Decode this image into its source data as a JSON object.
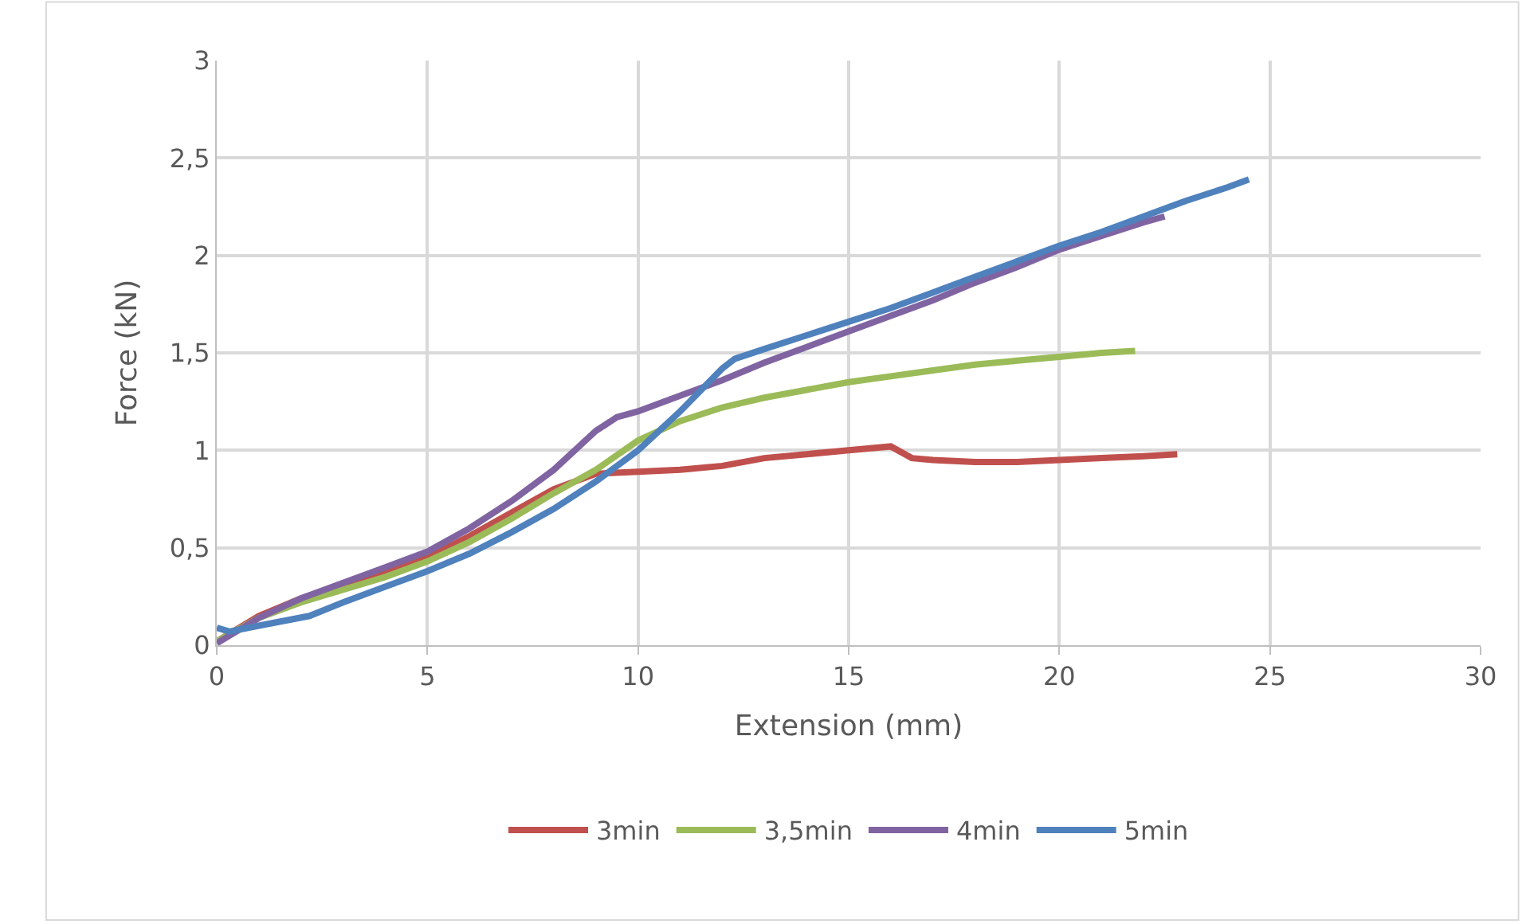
{
  "chart_data": {
    "type": "line",
    "xlabel": "Extension (mm)",
    "ylabel": "Force (kN)",
    "xlim": [
      0,
      30
    ],
    "xticks": [
      0,
      5,
      10,
      15,
      20,
      25,
      30
    ],
    "ylim": [
      0,
      3
    ],
    "yticks": [
      0,
      {
        "value": 0.5,
        "label": "0,5"
      },
      1,
      {
        "value": 1.5,
        "label": "1,5"
      },
      2,
      {
        "value": 2.5,
        "label": "2,5"
      },
      3
    ],
    "grid": true,
    "legend": "bottom",
    "marker": "none",
    "line_style": "solid",
    "series": [
      {
        "name": "3min",
        "color": "#c0504d",
        "x": [
          0,
          1,
          2,
          4,
          5,
          6,
          7,
          8,
          9,
          10,
          11,
          12,
          13,
          14,
          15,
          16,
          16.5,
          17,
          18,
          19,
          20,
          21,
          22,
          22.8
        ],
        "values": [
          0.02,
          0.15,
          0.24,
          0.37,
          0.45,
          0.56,
          0.68,
          0.8,
          0.88,
          0.89,
          0.9,
          0.92,
          0.96,
          0.98,
          1.0,
          1.02,
          0.96,
          0.95,
          0.94,
          0.94,
          0.95,
          0.96,
          0.97,
          0.98
        ]
      },
      {
        "name": "3,5min",
        "color": "#9bbb59",
        "x": [
          0,
          1,
          2,
          4,
          5,
          6,
          7,
          8,
          9,
          10,
          11,
          12,
          13,
          14,
          15,
          16,
          17,
          18,
          19,
          20,
          21,
          21.8
        ],
        "values": [
          0.02,
          0.14,
          0.22,
          0.35,
          0.43,
          0.53,
          0.65,
          0.78,
          0.9,
          1.05,
          1.15,
          1.22,
          1.27,
          1.31,
          1.35,
          1.38,
          1.41,
          1.44,
          1.46,
          1.48,
          1.5,
          1.51
        ]
      },
      {
        "name": "4min",
        "color": "#8064a2",
        "x": [
          0,
          1,
          2,
          4,
          5,
          6,
          7,
          8,
          9,
          9.5,
          10,
          11,
          12,
          13,
          14,
          15,
          16,
          17,
          18,
          19,
          20,
          21,
          22,
          22.5
        ],
        "values": [
          0.01,
          0.14,
          0.24,
          0.4,
          0.48,
          0.6,
          0.74,
          0.9,
          1.1,
          1.17,
          1.2,
          1.28,
          1.36,
          1.45,
          1.53,
          1.61,
          1.69,
          1.77,
          1.86,
          1.94,
          2.03,
          2.1,
          2.17,
          2.2
        ]
      },
      {
        "name": "5min",
        "color": "#4f81bd",
        "x": [
          0,
          0.3,
          1,
          2.2,
          3,
          4,
          5,
          6,
          7,
          8,
          9,
          10,
          11,
          12,
          12.3,
          13,
          14,
          15,
          16,
          17,
          18,
          19,
          20,
          21,
          22,
          23,
          24,
          24.5
        ],
        "values": [
          0.09,
          0.07,
          0.1,
          0.15,
          0.22,
          0.3,
          0.38,
          0.47,
          0.58,
          0.7,
          0.84,
          1.0,
          1.2,
          1.42,
          1.47,
          1.52,
          1.59,
          1.66,
          1.73,
          1.81,
          1.89,
          1.97,
          2.05,
          2.12,
          2.2,
          2.28,
          2.35,
          2.39
        ]
      }
    ]
  }
}
